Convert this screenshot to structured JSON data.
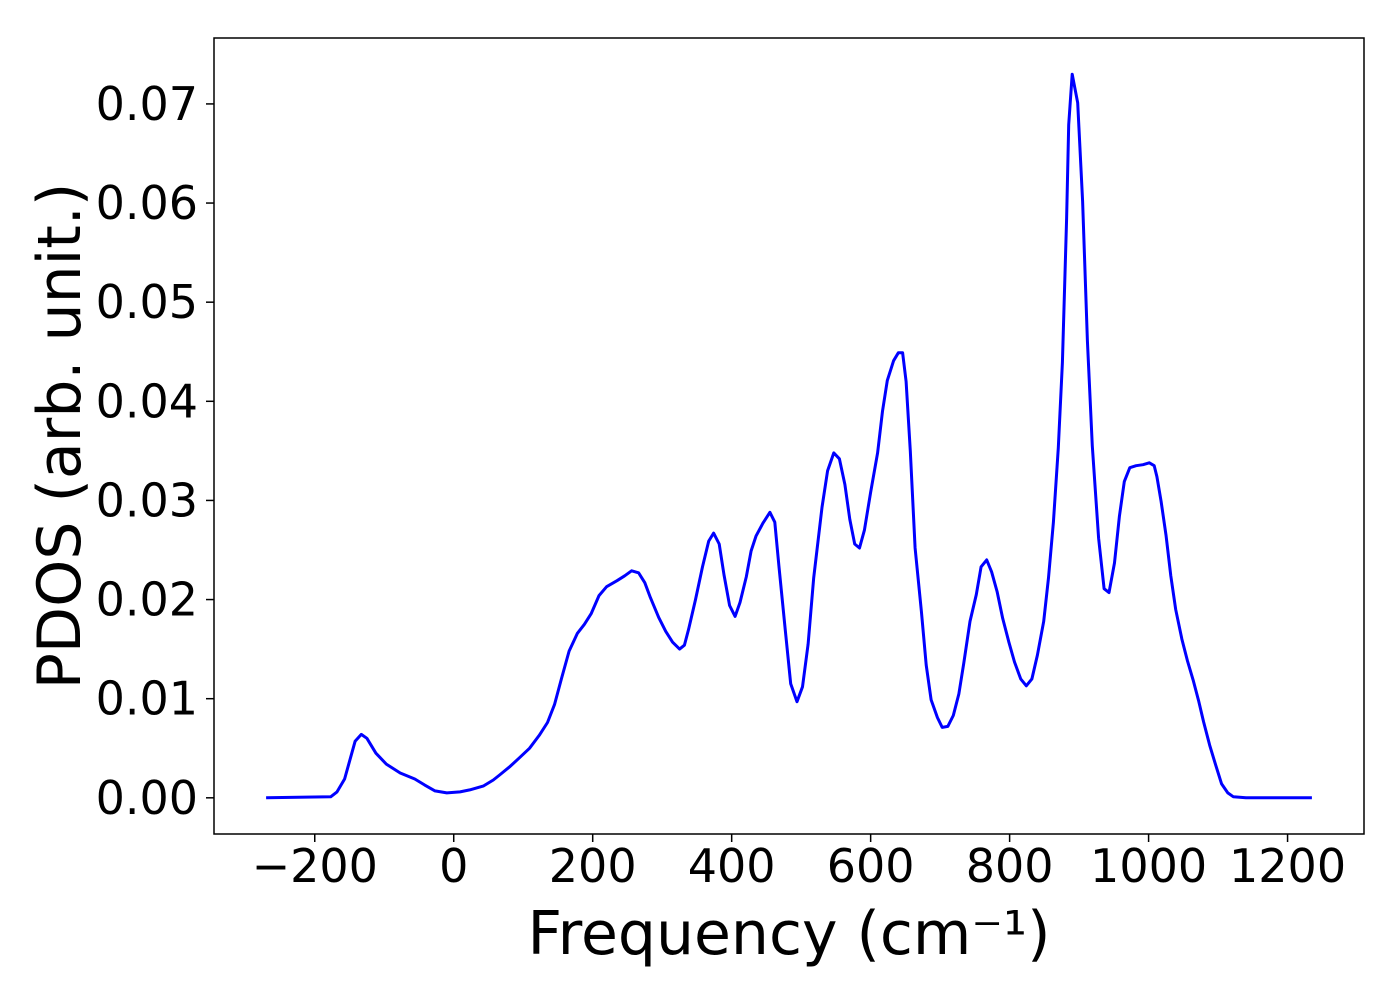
{
  "chart_data": {
    "type": "line",
    "xlabel": "Frequency (cm⁻¹)",
    "ylabel": "PDOS (arb. unit.)",
    "x": [
      -270,
      -177,
      -168,
      -157,
      -142,
      -133,
      -125,
      -112,
      -97,
      -77,
      -56,
      -42,
      -27,
      -10,
      9,
      23,
      43,
      57,
      66,
      80,
      94,
      109,
      123,
      135,
      145,
      155,
      166,
      178,
      188,
      198,
      209,
      220,
      235,
      246,
      256,
      266,
      275,
      283,
      295,
      305,
      315,
      325,
      332,
      338,
      348,
      358,
      367,
      374,
      382,
      389,
      397,
      405,
      412,
      421,
      428,
      435,
      445,
      455,
      462,
      468,
      477,
      485,
      494,
      502,
      510,
      518,
      530,
      538,
      547,
      555,
      563,
      570,
      577,
      584,
      591,
      600,
      610,
      617,
      624,
      633,
      640,
      646,
      651,
      657,
      664,
      673,
      680,
      687,
      696,
      703,
      711,
      719,
      727,
      734,
      743,
      752,
      759,
      767,
      774,
      782,
      790,
      799,
      807,
      816,
      824,
      832,
      840,
      849,
      856,
      863,
      870,
      876,
      882,
      885,
      890,
      898,
      905,
      912,
      919,
      928,
      936,
      943,
      951,
      958,
      965,
      973,
      982,
      992,
      1001,
      1008,
      1012,
      1018,
      1025,
      1032,
      1039,
      1048,
      1056,
      1064,
      1072,
      1079,
      1088,
      1097,
      1105,
      1114,
      1122,
      1140,
      1235
    ],
    "series": [
      {
        "name": "PDOS",
        "color": "#0000ff",
        "values": [
          0,
          0.0001,
          0.0006,
          0.0019,
          0.0057,
          0.0064,
          0.006,
          0.0045,
          0.0034,
          0.0025,
          0.0019,
          0.0013,
          0.0007,
          0.0005,
          0.0006,
          0.0008,
          0.0012,
          0.0018,
          0.0023,
          0.0031,
          0.004,
          0.005,
          0.0063,
          0.0076,
          0.0094,
          0.012,
          0.0148,
          0.0166,
          0.0175,
          0.0186,
          0.0204,
          0.0213,
          0.0219,
          0.0224,
          0.0229,
          0.0227,
          0.0217,
          0.0202,
          0.0182,
          0.0168,
          0.0157,
          0.015,
          0.0154,
          0.017,
          0.02,
          0.0233,
          0.0259,
          0.0267,
          0.0256,
          0.0225,
          0.0194,
          0.0183,
          0.0197,
          0.0223,
          0.0249,
          0.0264,
          0.0277,
          0.0288,
          0.0278,
          0.0234,
          0.017,
          0.0115,
          0.0097,
          0.0112,
          0.0155,
          0.0222,
          0.0293,
          0.033,
          0.0348,
          0.0342,
          0.0316,
          0.0281,
          0.0256,
          0.0252,
          0.027,
          0.0308,
          0.0348,
          0.039,
          0.0421,
          0.0441,
          0.0449,
          0.0449,
          0.042,
          0.035,
          0.0252,
          0.0188,
          0.0134,
          0.0099,
          0.0081,
          0.0071,
          0.0072,
          0.0083,
          0.0105,
          0.0136,
          0.0178,
          0.0205,
          0.0233,
          0.024,
          0.0228,
          0.0208,
          0.0181,
          0.0157,
          0.0137,
          0.012,
          0.0113,
          0.012,
          0.0144,
          0.0178,
          0.0222,
          0.0278,
          0.0353,
          0.0439,
          0.0584,
          0.0679,
          0.073,
          0.0701,
          0.0602,
          0.0461,
          0.0355,
          0.0262,
          0.0211,
          0.0207,
          0.0237,
          0.0284,
          0.0319,
          0.0333,
          0.0335,
          0.0336,
          0.0338,
          0.0335,
          0.0324,
          0.0299,
          0.0265,
          0.0224,
          0.019,
          0.016,
          0.0138,
          0.0119,
          0.0098,
          0.0077,
          0.0053,
          0.0032,
          0.0014,
          0.0005,
          0.0001,
          0,
          0
        ]
      }
    ],
    "xlim": [
      -345,
      1310
    ],
    "ylim": [
      -0.00365,
      0.07665
    ],
    "xticks": [
      {
        "value": -200,
        "label": "−200"
      },
      0,
      200,
      400,
      600,
      800,
      1000,
      1200
    ],
    "yticks": [
      {
        "value": 0,
        "label": "0.00"
      },
      {
        "value": 0.01,
        "label": "0.01"
      },
      {
        "value": 0.02,
        "label": "0.02"
      },
      {
        "value": 0.03,
        "label": "0.03"
      },
      {
        "value": 0.04,
        "label": "0.04"
      },
      {
        "value": 0.05,
        "label": "0.05"
      },
      {
        "value": 0.06,
        "label": "0.06"
      },
      {
        "value": 0.07,
        "label": "0.07"
      }
    ],
    "grid": false
  }
}
